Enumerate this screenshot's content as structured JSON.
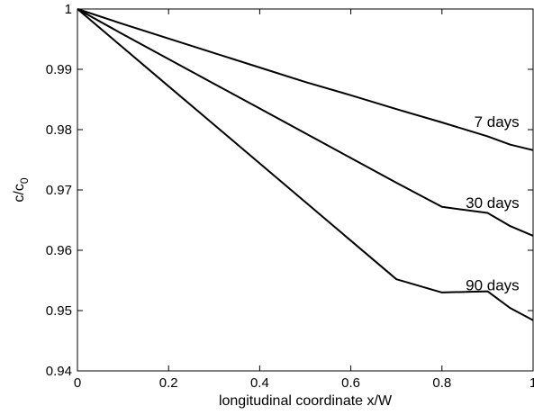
{
  "chart_data": {
    "type": "line",
    "title": "",
    "xlabel": "longitudinal coordinate x/W",
    "ylabel": {
      "base": "c/c",
      "subscript": "0"
    },
    "xlim": [
      0,
      1
    ],
    "ylim": [
      0.94,
      1
    ],
    "x_ticks": [
      "0",
      "0.2",
      "0.4",
      "0.6",
      "0.8",
      "1"
    ],
    "y_ticks": [
      "0.94",
      "0.95",
      "0.96",
      "0.97",
      "0.98",
      "0.99",
      "1"
    ],
    "grid": false,
    "box": true,
    "line_color": "#000000",
    "series": [
      {
        "name": "7 days",
        "x": [
          0,
          0.1,
          0.2,
          0.3,
          0.4,
          0.5,
          0.6,
          0.7,
          0.8,
          0.9,
          0.95,
          1.0
        ],
        "y": [
          1.0,
          0.9975,
          0.9951,
          0.9927,
          0.9903,
          0.9879,
          0.9857,
          0.9834,
          0.9812,
          0.9789,
          0.9775,
          0.9766
        ]
      },
      {
        "name": "30 days",
        "x": [
          0,
          0.1,
          0.2,
          0.3,
          0.4,
          0.5,
          0.6,
          0.7,
          0.8,
          0.9,
          0.95,
          1.0
        ],
        "y": [
          1.0,
          0.9958,
          0.9917,
          0.9876,
          0.9835,
          0.9794,
          0.9753,
          0.9712,
          0.9672,
          0.9662,
          0.964,
          0.9624
        ]
      },
      {
        "name": "90 days",
        "x": [
          0,
          0.1,
          0.2,
          0.3,
          0.4,
          0.5,
          0.6,
          0.7,
          0.8,
          0.9,
          0.95,
          1.0
        ],
        "y": [
          1.0,
          0.9936,
          0.9872,
          0.9808,
          0.9744,
          0.968,
          0.9616,
          0.9552,
          0.953,
          0.9532,
          0.9504,
          0.9484
        ]
      }
    ]
  }
}
